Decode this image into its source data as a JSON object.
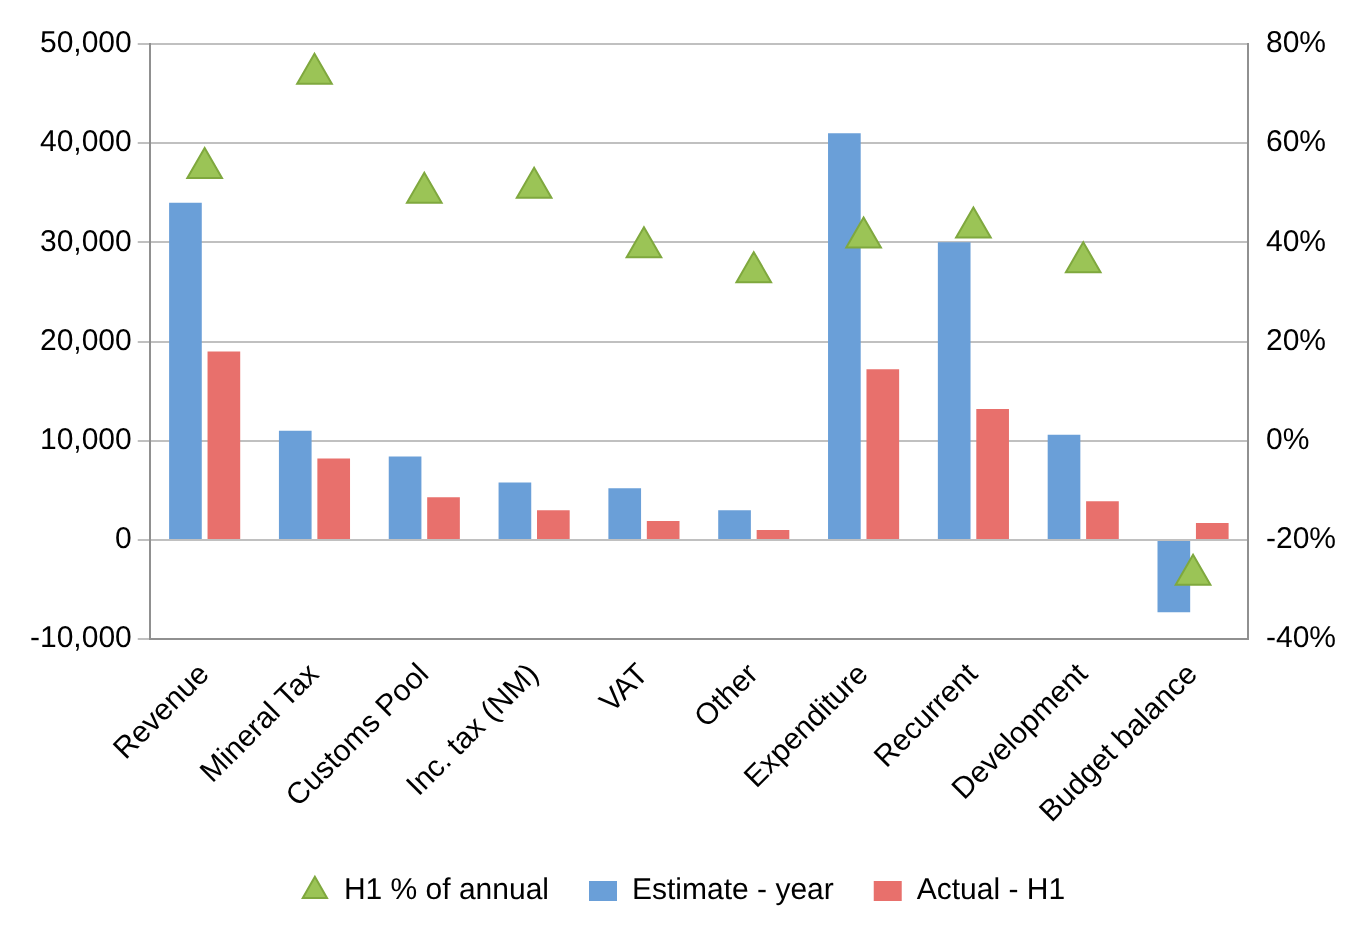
{
  "chart_data": {
    "type": "bar",
    "categories": [
      "Revenue",
      "Mineral Tax",
      "Customs Pool",
      "Inc. tax (NM)",
      "VAT",
      "Other",
      "Expenditure",
      "Recurrent",
      "Development",
      "Budget balance"
    ],
    "series": [
      {
        "name": "Estimate - year",
        "color": "#6a9fd8",
        "values": [
          34000,
          11000,
          8400,
          5800,
          5200,
          3000,
          41000,
          30000,
          10600,
          -7300
        ]
      },
      {
        "name": "Actual - H1",
        "color": "#e8706c",
        "values": [
          19000,
          8200,
          4300,
          3000,
          1900,
          1000,
          17200,
          13200,
          3900,
          1700
        ]
      },
      {
        "name": "H1 % of annual",
        "type": "scatter",
        "axis": "y2",
        "marker": "triangle",
        "color": "#9bc456",
        "values": [
          55,
          74,
          50,
          51,
          39,
          34,
          41,
          43,
          36,
          -27
        ]
      }
    ],
    "ylim": [
      -10000,
      50000
    ],
    "yticks": [
      {
        "value": -10000,
        "label": "-10,000"
      },
      {
        "value": 0,
        "label": "0"
      },
      {
        "value": 10000,
        "label": "10,000"
      },
      {
        "value": 20000,
        "label": "20,000"
      },
      {
        "value": 30000,
        "label": "30,000"
      },
      {
        "value": 40000,
        "label": "40,000"
      },
      {
        "value": 50000,
        "label": "50,000"
      }
    ],
    "y2lim": [
      -40,
      80
    ],
    "y2ticks": [
      {
        "value": -40,
        "label": "-40%"
      },
      {
        "value": -20,
        "label": "-20%"
      },
      {
        "value": 0,
        "label": "0%"
      },
      {
        "value": 20,
        "label": "20%"
      },
      {
        "value": 40,
        "label": "40%"
      },
      {
        "value": 60,
        "label": "60%"
      },
      {
        "value": 80,
        "label": "80%"
      }
    ],
    "grid": "y",
    "legend": "bottom"
  }
}
